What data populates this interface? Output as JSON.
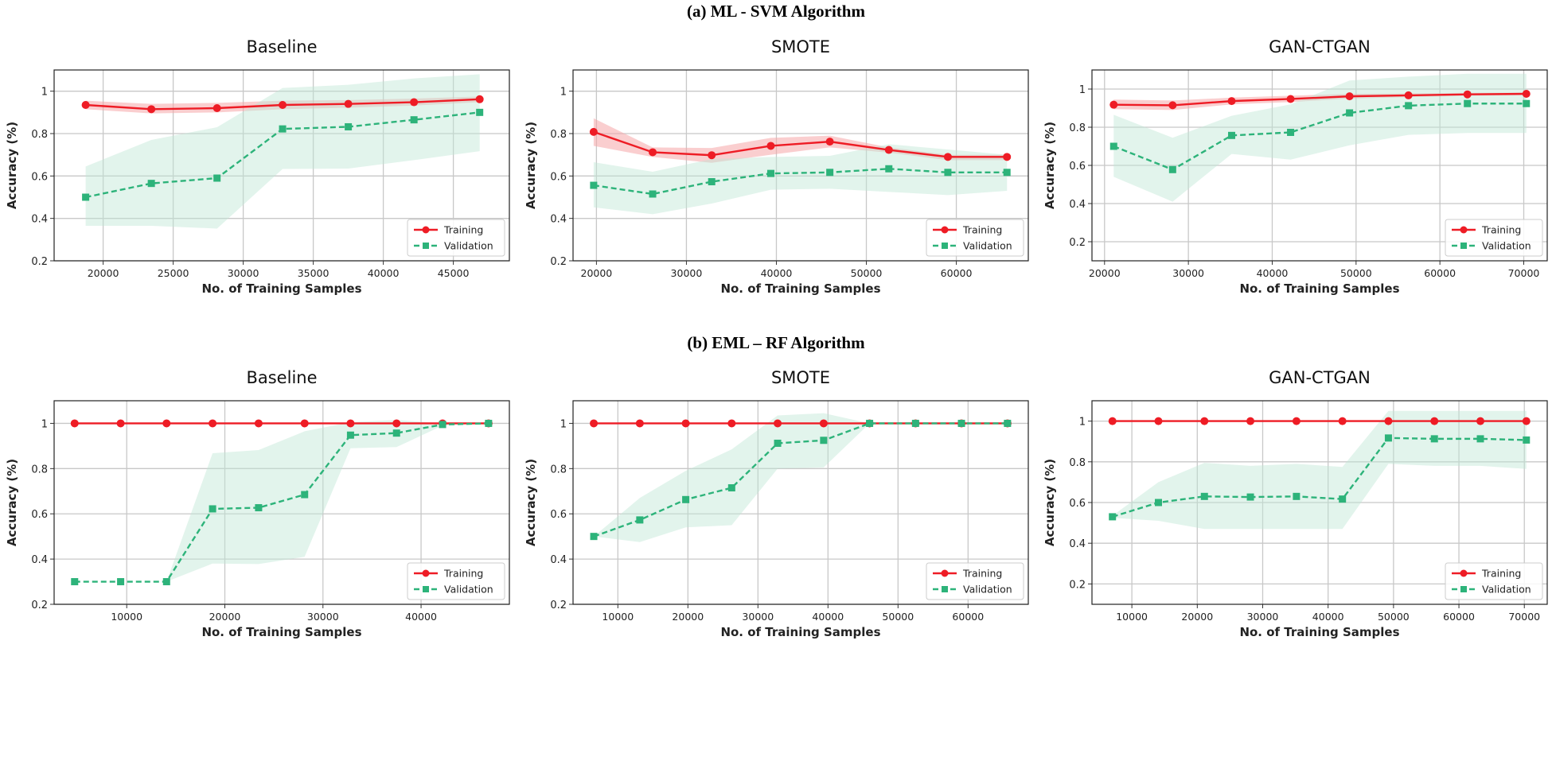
{
  "row_titles": [
    "(a) ML - SVM Algorithm",
    "(b) EML – RF Algorithm"
  ],
  "colors": {
    "training": "#ee1c25",
    "training_band": "#f5a5a8",
    "validation": "#2db37a",
    "validation_band": "#bfe6d4"
  },
  "chart_data": [
    {
      "type": "line",
      "row": 0,
      "title": "Baseline",
      "xlabel": "No. of Training Samples",
      "ylabel": "Accuracy (%)",
      "xlim": [
        16500,
        49000
      ],
      "ylim": [
        0.2,
        1.1
      ],
      "xticks": [
        20000,
        25000,
        30000,
        35000,
        40000,
        45000
      ],
      "yticks": [
        0.2,
        0.4,
        0.6,
        0.8,
        1.0
      ],
      "grid": true,
      "legend": "bottom-right",
      "x": [
        18750,
        23440,
        28130,
        32810,
        37500,
        42190,
        46880
      ],
      "series": [
        {
          "name": "Training",
          "marker": "circle",
          "values": [
            0.935,
            0.915,
            0.92,
            0.935,
            0.94,
            0.948,
            0.962
          ],
          "lower": [
            0.915,
            0.895,
            0.9,
            0.915,
            0.922,
            0.932,
            0.948
          ],
          "upper": [
            0.955,
            0.94,
            0.945,
            0.955,
            0.958,
            0.965,
            0.975
          ]
        },
        {
          "name": "Validation",
          "marker": "square",
          "values": [
            0.5,
            0.565,
            0.59,
            0.822,
            0.832,
            0.865,
            0.9
          ],
          "lower": [
            0.365,
            0.365,
            0.352,
            0.633,
            0.635,
            0.675,
            0.717
          ],
          "upper": [
            0.645,
            0.77,
            0.83,
            1.015,
            1.03,
            1.06,
            1.08
          ]
        }
      ]
    },
    {
      "type": "line",
      "row": 0,
      "title": "SMOTE",
      "xlabel": "No. of Training Samples",
      "ylabel": "Accuracy (%)",
      "xlim": [
        17400,
        68000
      ],
      "ylim": [
        0.2,
        1.1
      ],
      "xticks": [
        20000,
        30000,
        40000,
        50000,
        60000
      ],
      "yticks": [
        0.2,
        0.4,
        0.6,
        0.8,
        1.0
      ],
      "grid": true,
      "legend": "bottom-right",
      "x": [
        19690,
        26250,
        32810,
        39380,
        45940,
        52500,
        59060,
        65630
      ],
      "series": [
        {
          "name": "Training",
          "marker": "circle",
          "values": [
            0.808,
            0.712,
            0.698,
            0.742,
            0.762,
            0.723,
            0.69,
            0.69
          ],
          "lower": [
            0.742,
            0.69,
            0.662,
            0.7,
            0.735,
            0.71,
            0.675,
            0.675
          ],
          "upper": [
            0.872,
            0.735,
            0.732,
            0.78,
            0.79,
            0.735,
            0.7,
            0.7
          ]
        },
        {
          "name": "Validation",
          "marker": "square",
          "values": [
            0.556,
            0.515,
            0.573,
            0.612,
            0.617,
            0.634,
            0.617,
            0.617
          ],
          "lower": [
            0.452,
            0.42,
            0.47,
            0.535,
            0.54,
            0.525,
            0.51,
            0.53
          ],
          "upper": [
            0.665,
            0.62,
            0.68,
            0.69,
            0.695,
            0.75,
            0.725,
            0.7
          ]
        }
      ]
    },
    {
      "type": "line",
      "row": 0,
      "title": "GAN-CTGAN",
      "xlabel": "No. of Training Samples",
      "ylabel": "Accuracy (%)",
      "xlim": [
        18500,
        72800
      ],
      "ylim": [
        0.1,
        1.1
      ],
      "xticks": [
        20000,
        30000,
        40000,
        50000,
        60000,
        70000
      ],
      "yticks": [
        0.2,
        0.4,
        0.6,
        0.8,
        1.0
      ],
      "grid": true,
      "legend": "bottom-right",
      "x": [
        21090,
        28120,
        35160,
        42190,
        49220,
        56250,
        63280,
        70310
      ],
      "series": [
        {
          "name": "Training",
          "marker": "circle",
          "values": [
            0.918,
            0.915,
            0.937,
            0.948,
            0.962,
            0.967,
            0.972,
            0.975
          ],
          "lower": [
            0.895,
            0.89,
            0.92,
            0.932,
            0.95,
            0.958,
            0.965,
            0.968
          ],
          "upper": [
            0.945,
            0.94,
            0.955,
            0.965,
            0.975,
            0.977,
            0.98,
            0.982
          ]
        },
        {
          "name": "Validation",
          "marker": "square",
          "values": [
            0.7,
            0.578,
            0.757,
            0.773,
            0.875,
            0.913,
            0.924,
            0.924
          ],
          "lower": [
            0.54,
            0.41,
            0.66,
            0.63,
            0.705,
            0.76,
            0.77,
            0.77
          ],
          "upper": [
            0.865,
            0.745,
            0.86,
            0.92,
            1.045,
            1.065,
            1.08,
            1.08
          ]
        }
      ]
    },
    {
      "type": "line",
      "row": 1,
      "title": "Baseline",
      "xlabel": "No. of Training Samples",
      "ylabel": "Accuracy (%)",
      "xlim": [
        2600,
        49000
      ],
      "ylim": [
        0.2,
        1.1
      ],
      "xticks": [
        10000,
        20000,
        30000,
        40000
      ],
      "yticks": [
        0.2,
        0.4,
        0.6,
        0.8,
        1.0
      ],
      "grid": true,
      "legend": "bottom-right",
      "x": [
        4690,
        9380,
        14060,
        18750,
        23440,
        28130,
        32810,
        37500,
        42190,
        46880
      ],
      "series": [
        {
          "name": "Training",
          "marker": "circle",
          "values": [
            1,
            1,
            1,
            1,
            1,
            1,
            1,
            1,
            1,
            1
          ],
          "lower": [
            1,
            1,
            1,
            1,
            1,
            1,
            1,
            1,
            1,
            1
          ],
          "upper": [
            1,
            1,
            1,
            1,
            1,
            1,
            1,
            1,
            1,
            1
          ]
        },
        {
          "name": "Validation",
          "marker": "square",
          "values": [
            0.3,
            0.3,
            0.3,
            0.622,
            0.627,
            0.685,
            0.948,
            0.957,
            0.995,
            1.0
          ],
          "lower": [
            0.3,
            0.3,
            0.3,
            0.38,
            0.378,
            0.41,
            0.89,
            0.895,
            0.99,
            1.0
          ],
          "upper": [
            0.3,
            0.3,
            0.3,
            0.868,
            0.882,
            0.965,
            1.005,
            1.015,
            1.0,
            1.0
          ]
        }
      ]
    },
    {
      "type": "line",
      "row": 1,
      "title": "SMOTE",
      "xlabel": "No. of Training Samples",
      "ylabel": "Accuracy (%)",
      "xlim": [
        3600,
        68600
      ],
      "ylim": [
        0.2,
        1.1
      ],
      "xticks": [
        10000,
        20000,
        30000,
        40000,
        50000,
        60000
      ],
      "yticks": [
        0.2,
        0.4,
        0.6,
        0.8,
        1.0
      ],
      "grid": true,
      "legend": "bottom-right",
      "x": [
        6560,
        13130,
        19690,
        26250,
        32810,
        39380,
        45940,
        52500,
        59060,
        65630
      ],
      "series": [
        {
          "name": "Training",
          "marker": "circle",
          "values": [
            1,
            1,
            1,
            1,
            1,
            1,
            1,
            1,
            1,
            1
          ],
          "lower": [
            1,
            1,
            1,
            1,
            1,
            1,
            1,
            1,
            1,
            1
          ],
          "upper": [
            1,
            1,
            1,
            1,
            1,
            1,
            1,
            1,
            1,
            1
          ]
        },
        {
          "name": "Validation",
          "marker": "square",
          "values": [
            0.5,
            0.573,
            0.663,
            0.715,
            0.912,
            0.925,
            1.0,
            1.0,
            1.0,
            1.0
          ],
          "lower": [
            0.5,
            0.475,
            0.54,
            0.55,
            0.8,
            0.805,
            1.0,
            1.0,
            1.0,
            1.0
          ],
          "upper": [
            0.5,
            0.67,
            0.79,
            0.885,
            1.035,
            1.045,
            1.0,
            1.0,
            1.0,
            1.0
          ]
        }
      ]
    },
    {
      "type": "line",
      "row": 1,
      "title": "GAN-CTGAN",
      "xlabel": "No. of Training Samples",
      "ylabel": "Accuracy (%)",
      "xlim": [
        3900,
        73500
      ],
      "ylim": [
        0.1,
        1.1
      ],
      "xticks": [
        10000,
        20000,
        30000,
        40000,
        50000,
        60000,
        70000
      ],
      "yticks": [
        0.2,
        0.4,
        0.6,
        0.8,
        1.0
      ],
      "grid": true,
      "legend": "bottom-right",
      "x": [
        7030,
        14060,
        21090,
        28120,
        35160,
        42190,
        49220,
        56250,
        63280,
        70310
      ],
      "series": [
        {
          "name": "Training",
          "marker": "circle",
          "values": [
            1,
            1,
            1,
            1,
            1,
            1,
            1,
            1,
            1,
            1
          ],
          "lower": [
            1,
            1,
            1,
            1,
            1,
            1,
            1,
            1,
            1,
            1
          ],
          "upper": [
            1,
            1,
            1,
            1,
            1,
            1,
            1,
            1,
            1,
            1
          ]
        },
        {
          "name": "Validation",
          "marker": "square",
          "values": [
            0.53,
            0.6,
            0.63,
            0.627,
            0.63,
            0.617,
            0.917,
            0.913,
            0.913,
            0.907
          ],
          "lower": [
            0.525,
            0.51,
            0.47,
            0.47,
            0.47,
            0.47,
            0.79,
            0.78,
            0.78,
            0.765
          ],
          "upper": [
            0.535,
            0.7,
            0.795,
            0.78,
            0.79,
            0.775,
            1.05,
            1.05,
            1.05,
            1.05
          ]
        }
      ]
    }
  ]
}
